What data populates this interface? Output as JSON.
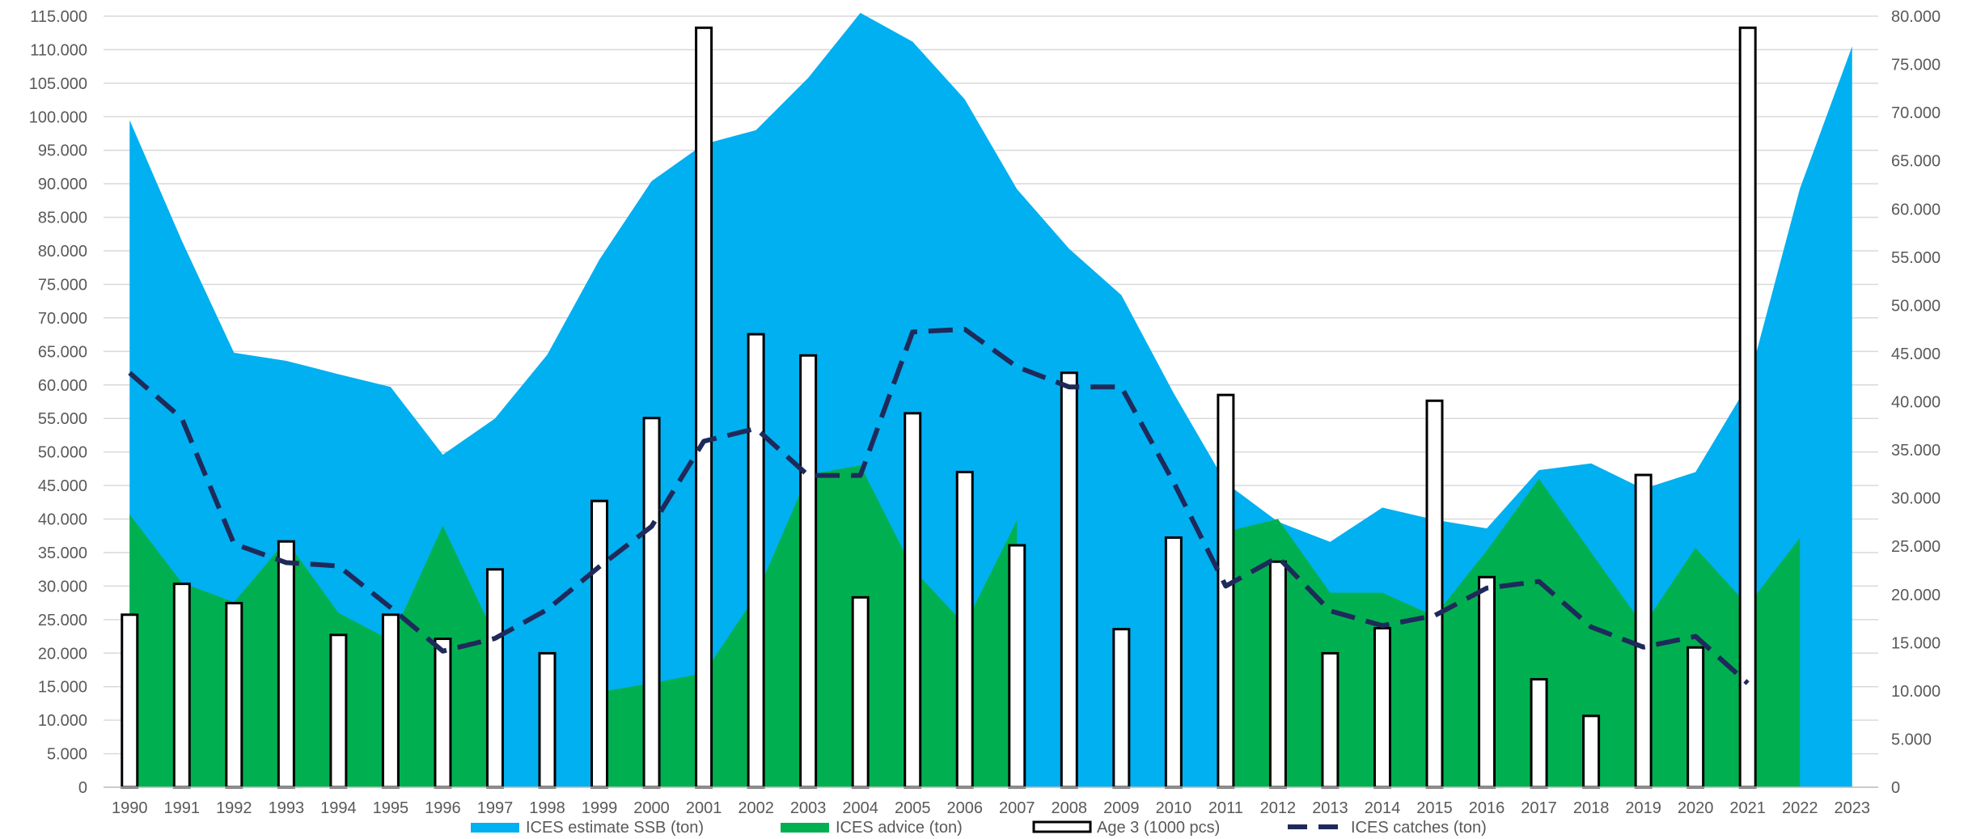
{
  "chart_data": {
    "type": "combo",
    "x": [
      "1990",
      "1991",
      "1992",
      "1993",
      "1994",
      "1995",
      "1996",
      "1997",
      "1998",
      "1999",
      "2000",
      "2001",
      "2002",
      "2003",
      "2004",
      "2005",
      "2006",
      "2007",
      "2008",
      "2009",
      "2010",
      "2011",
      "2012",
      "2013",
      "2014",
      "2015",
      "2016",
      "2017",
      "2018",
      "2019",
      "2020",
      "2021",
      "2022",
      "2023"
    ],
    "left_axis": {
      "ylim": [
        0,
        115000
      ],
      "ticks": [
        "0",
        "5.000",
        "10.000",
        "15.000",
        "20.000",
        "25.000",
        "30.000",
        "35.000",
        "40.000",
        "45.000",
        "50.000",
        "55.000",
        "60.000",
        "65.000",
        "70.000",
        "75.000",
        "80.000",
        "85.000",
        "90.000",
        "95.000",
        "100.000",
        "105.000",
        "110.000",
        "115.000"
      ]
    },
    "right_axis": {
      "ylim": [
        0,
        80000
      ],
      "ticks": [
        "0",
        "5.000",
        "10.000",
        "15.000",
        "20.000",
        "25.000",
        "30.000",
        "35.000",
        "40.000",
        "45.000",
        "50.000",
        "55.000",
        "60.000",
        "65.000",
        "70.000",
        "75.000",
        "80.000"
      ]
    },
    "grid": true,
    "legend_position": "bottom",
    "series": [
      {
        "name": "ICES estimate SSB (ton)",
        "kind": "area",
        "axis": "left",
        "color": "#00B0F0",
        "values": [
          99500,
          81500,
          64800,
          63600,
          61600,
          59700,
          49600,
          55000,
          64500,
          78700,
          90400,
          95900,
          98000,
          105800,
          115500,
          111200,
          102600,
          89200,
          80300,
          73400,
          58800,
          45400,
          39600,
          36600,
          41700,
          39900,
          38600,
          47300,
          48300,
          44500,
          47000,
          60000,
          89300,
          110500
        ]
      },
      {
        "name": "ICES advice (ton)",
        "kind": "area",
        "axis": "left",
        "color": "#00B050",
        "values": [
          40700,
          30500,
          27600,
          36800,
          26000,
          21900,
          39000,
          22500,
          null,
          14200,
          15500,
          17000,
          28600,
          46600,
          48000,
          32600,
          24200,
          39800,
          null,
          null,
          null,
          38100,
          40000,
          29000,
          29000,
          25500,
          35300,
          46000,
          35000,
          24100,
          35700,
          27100,
          37200,
          null
        ]
      },
      {
        "name": "Age 3 (1000 pcs)",
        "kind": "bar",
        "axis": "right",
        "color": "#000000",
        "values": [
          17900,
          21100,
          19100,
          25500,
          15800,
          17900,
          15400,
          22600,
          13900,
          29700,
          38300,
          78800,
          47000,
          44800,
          19700,
          38800,
          32700,
          25100,
          43000,
          16400,
          25900,
          40700,
          23400,
          13900,
          16500,
          40100,
          21800,
          11200,
          7400,
          32400,
          14500,
          78800,
          null,
          null
        ]
      },
      {
        "name": "ICES catches (ton)",
        "kind": "line",
        "axis": "left",
        "color": "#1F2A5A",
        "dashed": true,
        "values": [
          61800,
          55000,
          36300,
          33500,
          33000,
          26800,
          20300,
          22200,
          26500,
          32900,
          38900,
          51600,
          53500,
          46500,
          46500,
          67900,
          68300,
          62700,
          59700,
          59700,
          45500,
          30000,
          34300,
          26300,
          24100,
          25600,
          29700,
          30700,
          23900,
          20900,
          22500,
          15500,
          null,
          null
        ]
      }
    ]
  }
}
